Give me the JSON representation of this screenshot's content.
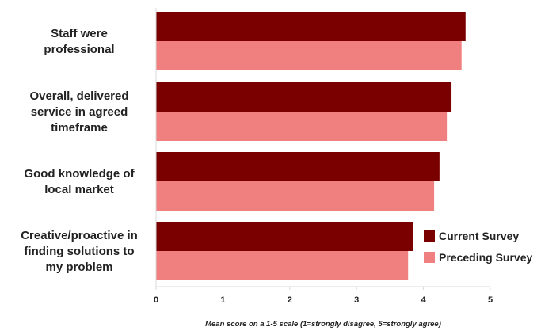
{
  "chart_data": {
    "type": "bar",
    "orientation": "horizontal",
    "categories": [
      [
        "Staff were",
        "professional"
      ],
      [
        "Overall, delivered",
        "service in agreed",
        "timeframe"
      ],
      [
        "Good knowledge of",
        "local market"
      ],
      [
        "Creative/proactive in",
        "finding solutions to",
        "my problem"
      ]
    ],
    "series": [
      {
        "name": "Current Survey",
        "color": "#7a0000",
        "values": [
          4.63,
          4.42,
          4.24,
          3.85
        ]
      },
      {
        "name": "Preceding Survey",
        "color": "#f08080",
        "values": [
          4.57,
          4.35,
          4.16,
          3.77
        ]
      }
    ],
    "xlabel": "Mean score on a 1-5 scale (1=strongly disagree, 5=strongly agree)",
    "xticks": [
      "0",
      "1",
      "2",
      "3",
      "4",
      "5"
    ],
    "xlim": [
      0,
      5
    ],
    "grid": false,
    "legend_position": "bottom-right"
  }
}
